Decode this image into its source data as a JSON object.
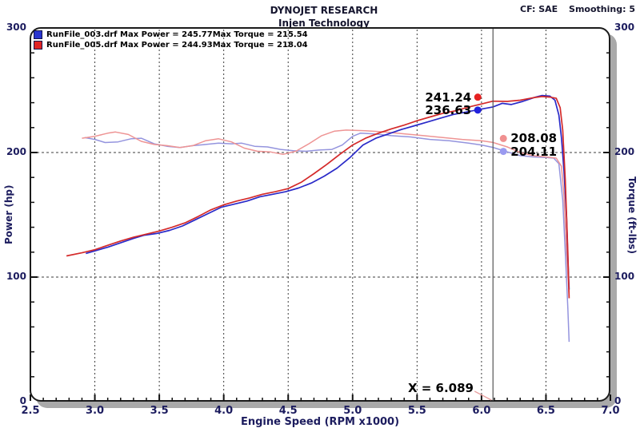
{
  "header": {
    "title": "DYNOJET RESEARCH",
    "subtitle": "Injen Technology",
    "cf_label": "CF: SAE",
    "smoothing_label": "Smoothing: 5"
  },
  "legend": {
    "rows": [
      {
        "file_power": "RunFile_003.drf Max Power = 245.77",
        "torque": "Max Torque = 215.54",
        "swatch_color": "#2a35cf"
      },
      {
        "file_power": "RunFile_005.drf Max Power = 244.93",
        "torque": "Max Torque = 218.04",
        "swatch_color": "#e02525"
      }
    ]
  },
  "axes": {
    "x_label": "Engine Speed (RPM x1000)",
    "y_left_label": "Power (hp)",
    "y_right_label": "Torque (ft-lbs)"
  },
  "cursor": {
    "x": 6.089,
    "label": "X = 6.089"
  },
  "chart_data": {
    "type": "line",
    "title": "DYNOJET RESEARCH",
    "subtitle": "Injen Technology",
    "correction_factor": "SAE",
    "smoothing": 5,
    "xlabel": "Engine Speed (RPM x1000)",
    "ylabel_left": "Power (hp)",
    "ylabel_right": "Torque (ft-lbs)",
    "x_min": 2.5,
    "x_max": 7.0,
    "y_min": 0,
    "y_max": 300,
    "x_major_ticks": [
      2.5,
      3.0,
      3.5,
      4.0,
      4.5,
      5.0,
      5.5,
      6.0,
      6.5,
      7.0
    ],
    "x_minor_step": 0.1,
    "y_major_ticks": [
      0,
      100,
      200,
      300
    ],
    "y_minor_step": 20,
    "grid_x": [
      3.0,
      3.5,
      4.0,
      4.5,
      5.0,
      5.5,
      6.0,
      6.5
    ],
    "grid_y": [
      100,
      200
    ],
    "cursor_x": 6.089,
    "series": [
      {
        "name": "RunFile_003.drf Power",
        "unit": "hp",
        "color": "#2a2ac8",
        "width": 1.7,
        "max": 245.77,
        "points": [
          [
            2.93,
            119
          ],
          [
            3.0,
            121
          ],
          [
            3.1,
            124
          ],
          [
            3.2,
            127.5
          ],
          [
            3.3,
            131
          ],
          [
            3.38,
            133.5
          ],
          [
            3.48,
            135
          ],
          [
            3.58,
            137.5
          ],
          [
            3.68,
            141
          ],
          [
            3.78,
            146
          ],
          [
            3.88,
            151
          ],
          [
            3.98,
            156
          ],
          [
            4.08,
            158.5
          ],
          [
            4.18,
            161
          ],
          [
            4.28,
            164.5
          ],
          [
            4.38,
            166.5
          ],
          [
            4.48,
            168.5
          ],
          [
            4.58,
            171.5
          ],
          [
            4.68,
            175.5
          ],
          [
            4.78,
            181
          ],
          [
            4.88,
            187.5
          ],
          [
            4.98,
            196
          ],
          [
            5.08,
            206
          ],
          [
            5.18,
            211.5
          ],
          [
            5.28,
            215
          ],
          [
            5.38,
            218.5
          ],
          [
            5.48,
            221.5
          ],
          [
            5.58,
            224.5
          ],
          [
            5.68,
            227.5
          ],
          [
            5.78,
            230.5
          ],
          [
            5.88,
            232.5
          ],
          [
            5.98,
            234.5
          ],
          [
            6.089,
            236.63
          ],
          [
            6.16,
            239.5
          ],
          [
            6.23,
            238.5
          ],
          [
            6.32,
            241
          ],
          [
            6.42,
            244.5
          ],
          [
            6.47,
            245.77
          ],
          [
            6.53,
            245.3
          ],
          [
            6.57,
            242
          ],
          [
            6.6,
            230
          ],
          [
            6.62,
            212
          ],
          [
            6.64,
            185
          ],
          [
            6.66,
            148
          ],
          [
            6.67,
            115
          ],
          [
            6.68,
            90
          ]
        ]
      },
      {
        "name": "RunFile_005.drf Power",
        "unit": "hp",
        "color": "#d42a2a",
        "width": 1.7,
        "max": 244.93,
        "points": [
          [
            2.78,
            117
          ],
          [
            2.9,
            119.5
          ],
          [
            3.0,
            122
          ],
          [
            3.1,
            125.5
          ],
          [
            3.2,
            129
          ],
          [
            3.3,
            132
          ],
          [
            3.4,
            134.5
          ],
          [
            3.5,
            137
          ],
          [
            3.6,
            140
          ],
          [
            3.7,
            143.5
          ],
          [
            3.8,
            148.5
          ],
          [
            3.9,
            154
          ],
          [
            4.0,
            158
          ],
          [
            4.1,
            161
          ],
          [
            4.2,
            163.5
          ],
          [
            4.3,
            166.5
          ],
          [
            4.4,
            168.5
          ],
          [
            4.5,
            171
          ],
          [
            4.6,
            176
          ],
          [
            4.7,
            183
          ],
          [
            4.8,
            190.5
          ],
          [
            4.9,
            198.5
          ],
          [
            5.0,
            206
          ],
          [
            5.1,
            211.5
          ],
          [
            5.2,
            215.5
          ],
          [
            5.3,
            219
          ],
          [
            5.4,
            222
          ],
          [
            5.5,
            225.5
          ],
          [
            5.6,
            228.5
          ],
          [
            5.7,
            231.5
          ],
          [
            5.8,
            233.5
          ],
          [
            5.9,
            236.5
          ],
          [
            6.0,
            239
          ],
          [
            6.089,
            241.24
          ],
          [
            6.2,
            241
          ],
          [
            6.3,
            242
          ],
          [
            6.4,
            244
          ],
          [
            6.47,
            244.93
          ],
          [
            6.53,
            244.5
          ],
          [
            6.58,
            243.5
          ],
          [
            6.61,
            236
          ],
          [
            6.63,
            218
          ],
          [
            6.65,
            178
          ],
          [
            6.67,
            120
          ],
          [
            6.68,
            83
          ]
        ]
      },
      {
        "name": "RunFile_003.drf Torque",
        "unit": "ft-lbs",
        "color": "#9494de",
        "width": 1.5,
        "max": 215.54,
        "points": [
          [
            2.92,
            212
          ],
          [
            3.0,
            210.5
          ],
          [
            3.08,
            208
          ],
          [
            3.18,
            208.5
          ],
          [
            3.28,
            211
          ],
          [
            3.36,
            211.5
          ],
          [
            3.46,
            207
          ],
          [
            3.56,
            205
          ],
          [
            3.66,
            204
          ],
          [
            3.76,
            205.5
          ],
          [
            3.86,
            206.5
          ],
          [
            3.96,
            207.5
          ],
          [
            4.06,
            207
          ],
          [
            4.14,
            207.5
          ],
          [
            4.24,
            205
          ],
          [
            4.34,
            204.5
          ],
          [
            4.44,
            202.5
          ],
          [
            4.54,
            201.5
          ],
          [
            4.64,
            201
          ],
          [
            4.74,
            202
          ],
          [
            4.84,
            202.5
          ],
          [
            4.92,
            206
          ],
          [
            5.0,
            213
          ],
          [
            5.06,
            215.54
          ],
          [
            5.16,
            215
          ],
          [
            5.3,
            213.5
          ],
          [
            5.45,
            212.5
          ],
          [
            5.6,
            210.5
          ],
          [
            5.75,
            209.5
          ],
          [
            5.9,
            207.5
          ],
          [
            6.0,
            206
          ],
          [
            6.089,
            204.11
          ],
          [
            6.2,
            200.5
          ],
          [
            6.3,
            197.5
          ],
          [
            6.4,
            196.5
          ],
          [
            6.5,
            196
          ],
          [
            6.56,
            195.5
          ],
          [
            6.6,
            191
          ],
          [
            6.63,
            162
          ],
          [
            6.65,
            120
          ],
          [
            6.67,
            75
          ],
          [
            6.68,
            48
          ]
        ]
      },
      {
        "name": "RunFile_005.drf Torque",
        "unit": "ft-lbs",
        "color": "#ee9494",
        "width": 1.5,
        "max": 218.04,
        "points": [
          [
            2.9,
            211.5
          ],
          [
            3.0,
            213
          ],
          [
            3.1,
            215.5
          ],
          [
            3.16,
            216.5
          ],
          [
            3.26,
            214.5
          ],
          [
            3.36,
            209
          ],
          [
            3.46,
            206.5
          ],
          [
            3.56,
            205.5
          ],
          [
            3.66,
            204
          ],
          [
            3.76,
            205.5
          ],
          [
            3.86,
            209.5
          ],
          [
            3.96,
            211
          ],
          [
            4.06,
            208.5
          ],
          [
            4.16,
            203.5
          ],
          [
            4.26,
            201
          ],
          [
            4.36,
            200.5
          ],
          [
            4.46,
            198.5
          ],
          [
            4.56,
            201
          ],
          [
            4.66,
            207
          ],
          [
            4.76,
            213.5
          ],
          [
            4.86,
            217.2
          ],
          [
            4.95,
            218.04
          ],
          [
            5.1,
            217.5
          ],
          [
            5.25,
            216.5
          ],
          [
            5.4,
            215
          ],
          [
            5.55,
            213.5
          ],
          [
            5.7,
            212
          ],
          [
            5.85,
            210.5
          ],
          [
            6.0,
            209.5
          ],
          [
            6.089,
            208.08
          ],
          [
            6.2,
            204.5
          ],
          [
            6.3,
            200
          ],
          [
            6.4,
            197.5
          ],
          [
            6.5,
            196.5
          ],
          [
            6.58,
            195.5
          ],
          [
            6.62,
            189
          ],
          [
            6.64,
            165
          ],
          [
            6.66,
            120
          ],
          [
            6.68,
            85
          ]
        ]
      }
    ],
    "cursor_markers": [
      {
        "label": "241.24",
        "value": 241.24,
        "series": "RunFile_005.drf Power",
        "color": "#e62222",
        "side": "left",
        "dy": -5
      },
      {
        "label": "236.63",
        "value": 236.63,
        "series": "RunFile_003.drf Power",
        "color": "#2222dd",
        "side": "left",
        "dy": 4
      },
      {
        "label": "208.08",
        "value": 208.08,
        "series": "RunFile_005.drf Torque",
        "color": "#f09090",
        "side": "right",
        "dy": -5
      },
      {
        "label": "204.11",
        "value": 204.11,
        "series": "RunFile_003.drf Torque",
        "color": "#9a9af0",
        "side": "right",
        "dy": 5
      }
    ]
  }
}
